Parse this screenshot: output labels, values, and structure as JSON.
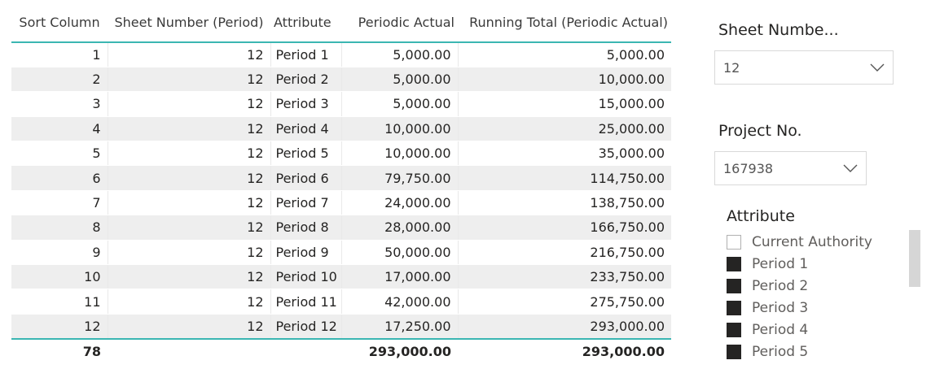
{
  "table": {
    "headers": [
      "Sort Column",
      "Sheet Number (Period)",
      "Attribute",
      "Periodic Actual",
      "Running Total (Periodic Actual)"
    ],
    "rows": [
      [
        "1",
        "12",
        "Period 1",
        "5,000.00",
        "5,000.00"
      ],
      [
        "2",
        "12",
        "Period 2",
        "5,000.00",
        "10,000.00"
      ],
      [
        "3",
        "12",
        "Period 3",
        "5,000.00",
        "15,000.00"
      ],
      [
        "4",
        "12",
        "Period 4",
        "10,000.00",
        "25,000.00"
      ],
      [
        "5",
        "12",
        "Period 5",
        "10,000.00",
        "35,000.00"
      ],
      [
        "6",
        "12",
        "Period 6",
        "79,750.00",
        "114,750.00"
      ],
      [
        "7",
        "12",
        "Period 7",
        "24,000.00",
        "138,750.00"
      ],
      [
        "8",
        "12",
        "Period 8",
        "28,000.00",
        "166,750.00"
      ],
      [
        "9",
        "12",
        "Period 9",
        "50,000.00",
        "216,750.00"
      ],
      [
        "10",
        "12",
        "Period 10",
        "17,000.00",
        "233,750.00"
      ],
      [
        "11",
        "12",
        "Period 11",
        "42,000.00",
        "275,750.00"
      ],
      [
        "12",
        "12",
        "Period 12",
        "17,250.00",
        "293,000.00"
      ]
    ],
    "totals": [
      "78",
      "",
      "",
      "293,000.00",
      "293,000.00"
    ]
  },
  "slicers": {
    "sheet_number": {
      "title": "Sheet Numbe...",
      "value": "12"
    },
    "project_no": {
      "title": "Project No.",
      "value": "167938"
    },
    "attribute": {
      "title": "Attribute",
      "items": [
        {
          "label": "Current Authority",
          "checked": false
        },
        {
          "label": "Period 1",
          "checked": true
        },
        {
          "label": "Period 2",
          "checked": true
        },
        {
          "label": "Period 3",
          "checked": true
        },
        {
          "label": "Period 4",
          "checked": true
        },
        {
          "label": "Period 5",
          "checked": true
        }
      ]
    }
  },
  "icons": {
    "dropdown": "chevron-down-icon",
    "checkbox": "checkbox-icon"
  },
  "colors": {
    "accent": "#3bb6b2",
    "row_stripe": "#eeeeee",
    "checkbox_on": "#252423"
  }
}
